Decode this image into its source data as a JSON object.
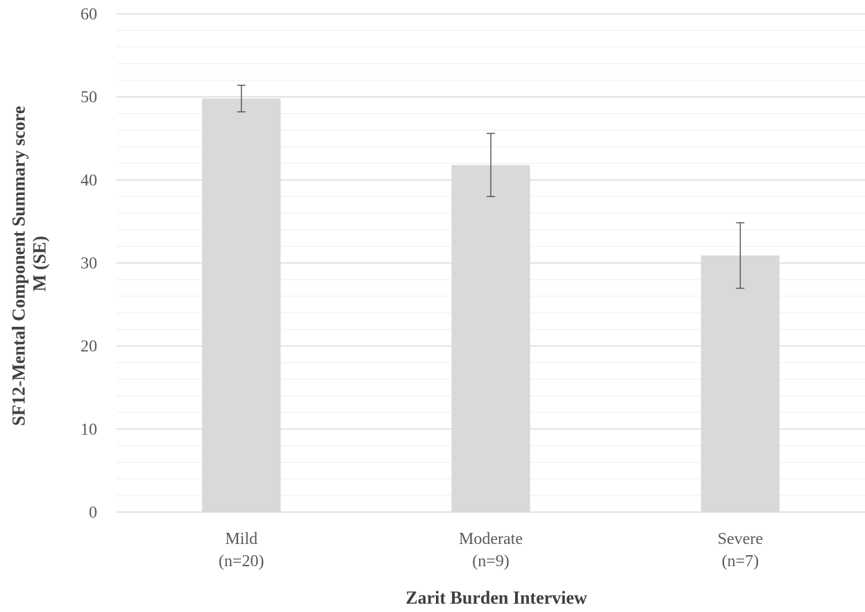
{
  "chart_data": {
    "type": "bar",
    "categories": [
      {
        "line1": "Mild",
        "line2": "(n=20)"
      },
      {
        "line1": "Moderate",
        "line2": "(n=9)"
      },
      {
        "line1": "Severe",
        "line2": "(n=7)"
      }
    ],
    "values": [
      49.8,
      41.8,
      30.9
    ],
    "errors": [
      1.6,
      3.8,
      3.95
    ],
    "xlabel": "Zarit Burden Interview",
    "ylabel_lines": [
      "SF12-Mental Component Summary score",
      "M (SE)"
    ],
    "ylim": [
      0,
      60
    ],
    "yticks": [
      0,
      10,
      20,
      30,
      40,
      50,
      60
    ],
    "grid": true,
    "minor_grid": true,
    "legend": "none",
    "colors": {
      "bar": "#d9d9d9",
      "major_grid": "#d9d9d9",
      "minor_grid": "#eeeeee",
      "error_bar": "#595959",
      "axis": "#d9d9d9"
    }
  }
}
